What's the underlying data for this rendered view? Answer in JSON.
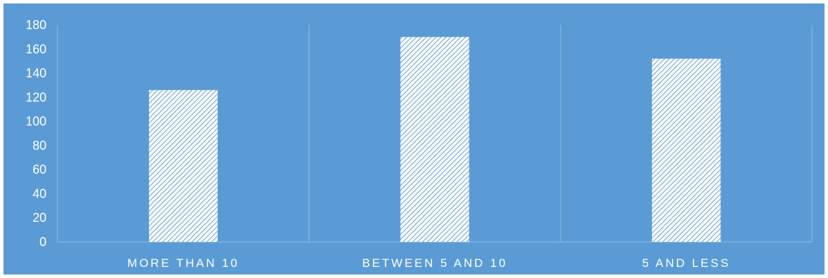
{
  "chart_data": {
    "type": "bar",
    "title": "",
    "xlabel": "",
    "ylabel": "",
    "categories": [
      "MORE THAN 10",
      "BETWEEN 5 AND 10",
      "5 AND LESS"
    ],
    "values": [
      126,
      170,
      152
    ],
    "ylim": [
      0,
      180
    ],
    "yticks": [
      0,
      20,
      40,
      60,
      80,
      100,
      120,
      140,
      160,
      180
    ],
    "grid": false,
    "legend": "none",
    "colors": {
      "background": "#5b9bd5",
      "bar_fill": "#ffffff",
      "bar_hatch": "#5b9bd5",
      "divider": "#8fbbe3",
      "text": "#ffffff"
    }
  }
}
